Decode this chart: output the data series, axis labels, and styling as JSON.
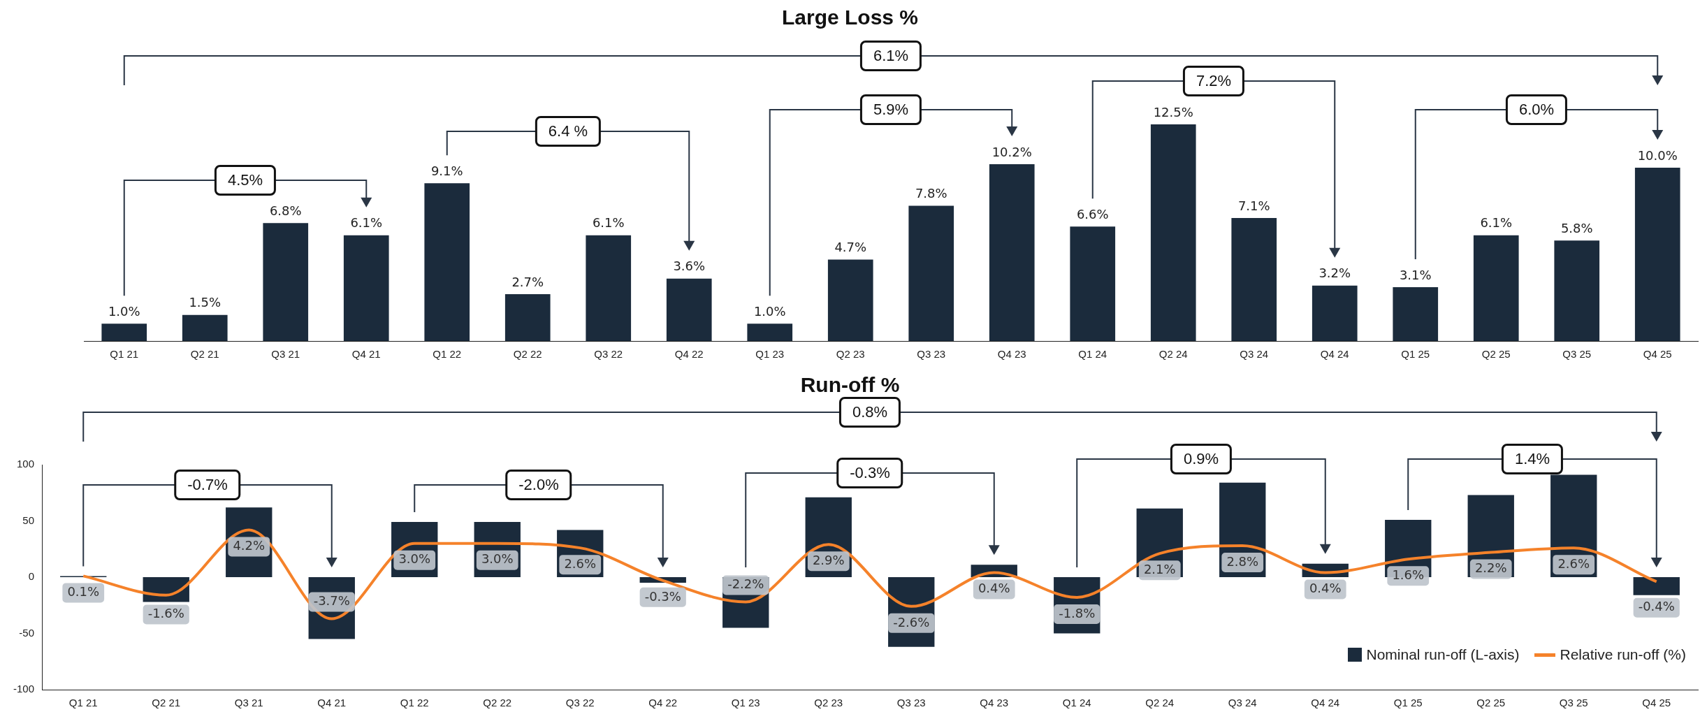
{
  "chart_data": [
    {
      "type": "bar",
      "title": "Large Loss %",
      "categories": [
        "Q1 21",
        "Q2 21",
        "Q3 21",
        "Q4 21",
        "Q1 22",
        "Q2 22",
        "Q3 22",
        "Q4 22",
        "Q1 23",
        "Q2 23",
        "Q3 23",
        "Q4 23",
        "Q1 24",
        "Q2 24",
        "Q3 24",
        "Q4 24",
        "Q1 25",
        "Q2 25",
        "Q3 25",
        "Q4 25"
      ],
      "values": [
        1.0,
        1.5,
        6.8,
        6.1,
        9.1,
        2.7,
        6.1,
        3.6,
        1.0,
        4.7,
        7.8,
        10.2,
        6.6,
        12.5,
        7.1,
        3.2,
        3.1,
        6.1,
        5.8,
        10.0
      ],
      "value_labels": [
        "1.0%",
        "1.5%",
        "6.8%",
        "6.1%",
        "9.1%",
        "2.7%",
        "6.1%",
        "3.6%",
        "1.0%",
        "4.7%",
        "7.8%",
        "10.2%",
        "6.6%",
        "12.5%",
        "7.1%",
        "3.2%",
        "3.1%",
        "6.1%",
        "5.8%",
        "10.0%"
      ],
      "color": "#1b2b3c",
      "tick_labels": "x",
      "annotations": [
        "6.1%",
        "4.5%",
        "6.4 %",
        "5.9%",
        "7.2%",
        "6.0%"
      ]
    },
    {
      "type": "bar",
      "title": "Run-off %",
      "categories": [
        "Q1 21",
        "Q2 21",
        "Q3 21",
        "Q4 21",
        "Q1 22",
        "Q2 22",
        "Q3 22",
        "Q4 22",
        "Q1 23",
        "Q2 23",
        "Q3 23",
        "Q4 23",
        "Q1 24",
        "Q2 24",
        "Q3 24",
        "Q4 24",
        "Q1 25",
        "Q2 25",
        "Q3 25",
        "Q4 25"
      ],
      "series": [
        {
          "name": "Nominal run-off (L-axis)",
          "type": "bar",
          "color": "#1b2b3c",
          "values": [
            1,
            -22,
            62,
            -55,
            49,
            49,
            42,
            -5,
            -45,
            71,
            -62,
            11,
            -50,
            61,
            84,
            12,
            51,
            73,
            91,
            -16
          ]
        },
        {
          "name": "Relative run-off (%)",
          "type": "line",
          "axis": "y2",
          "color": "#f5822a",
          "values": [
            0.1,
            -1.6,
            4.2,
            -3.7,
            3.0,
            3.0,
            2.6,
            -0.3,
            -2.2,
            2.9,
            -2.6,
            0.4,
            -1.8,
            2.1,
            2.8,
            0.4,
            1.6,
            2.2,
            2.6,
            -0.4
          ],
          "value_labels": [
            "0.1%",
            "-1.6%",
            "4.2%",
            "-3.7%",
            "3.0%",
            "3.0%",
            "2.6%",
            "-0.3%",
            "-2.2%",
            "2.9%",
            "-2.6%",
            "0.4%",
            "-1.8%",
            "2.1%",
            "2.8%",
            "0.4%",
            "1.6%",
            "2.2%",
            "2.6%",
            "-0.4%"
          ]
        }
      ],
      "ylim": [
        -100,
        100
      ],
      "yticks": [
        -100,
        -50,
        0,
        50,
        100
      ],
      "y2lim": [
        -10,
        10
      ],
      "legend": "bottom right",
      "marker": "none",
      "annotations": [
        "0.8%",
        "-0.7%",
        "-2.0%",
        "-0.3%",
        "0.9%",
        "1.4%"
      ]
    }
  ]
}
